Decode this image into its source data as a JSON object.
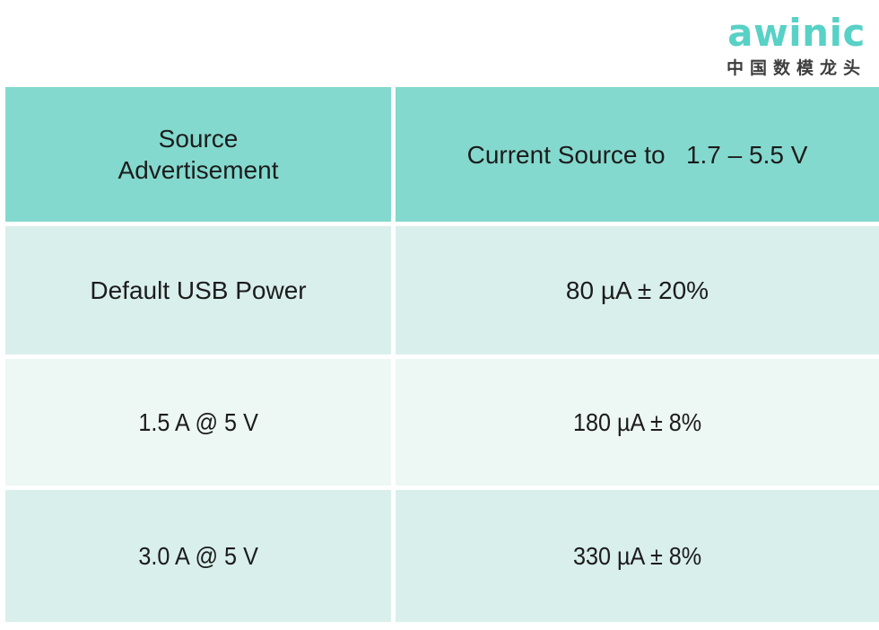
{
  "logo": {
    "brand": "awinic",
    "tagline": "中国数模龙头",
    "brand_color": "#58d1c6"
  },
  "table": {
    "columns": [
      {
        "header": "Source\nAdvertisement"
      },
      {
        "header": "Current Source to   1.7 – 5.5 V"
      }
    ],
    "rows": [
      {
        "source": "Default USB Power",
        "current": "80 µA ± 20%"
      },
      {
        "source": "1.5 A @ 5 V",
        "current": "180 µA ± 8%"
      },
      {
        "source": "3.0 A @ 5 V",
        "current": "330 µA ± 8%"
      }
    ]
  },
  "colors": {
    "header_bg": "#84d9ce",
    "row_odd_bg": "#d9efeb",
    "row_even_bg": "#edf7f4",
    "text": "#1c1c1c"
  }
}
